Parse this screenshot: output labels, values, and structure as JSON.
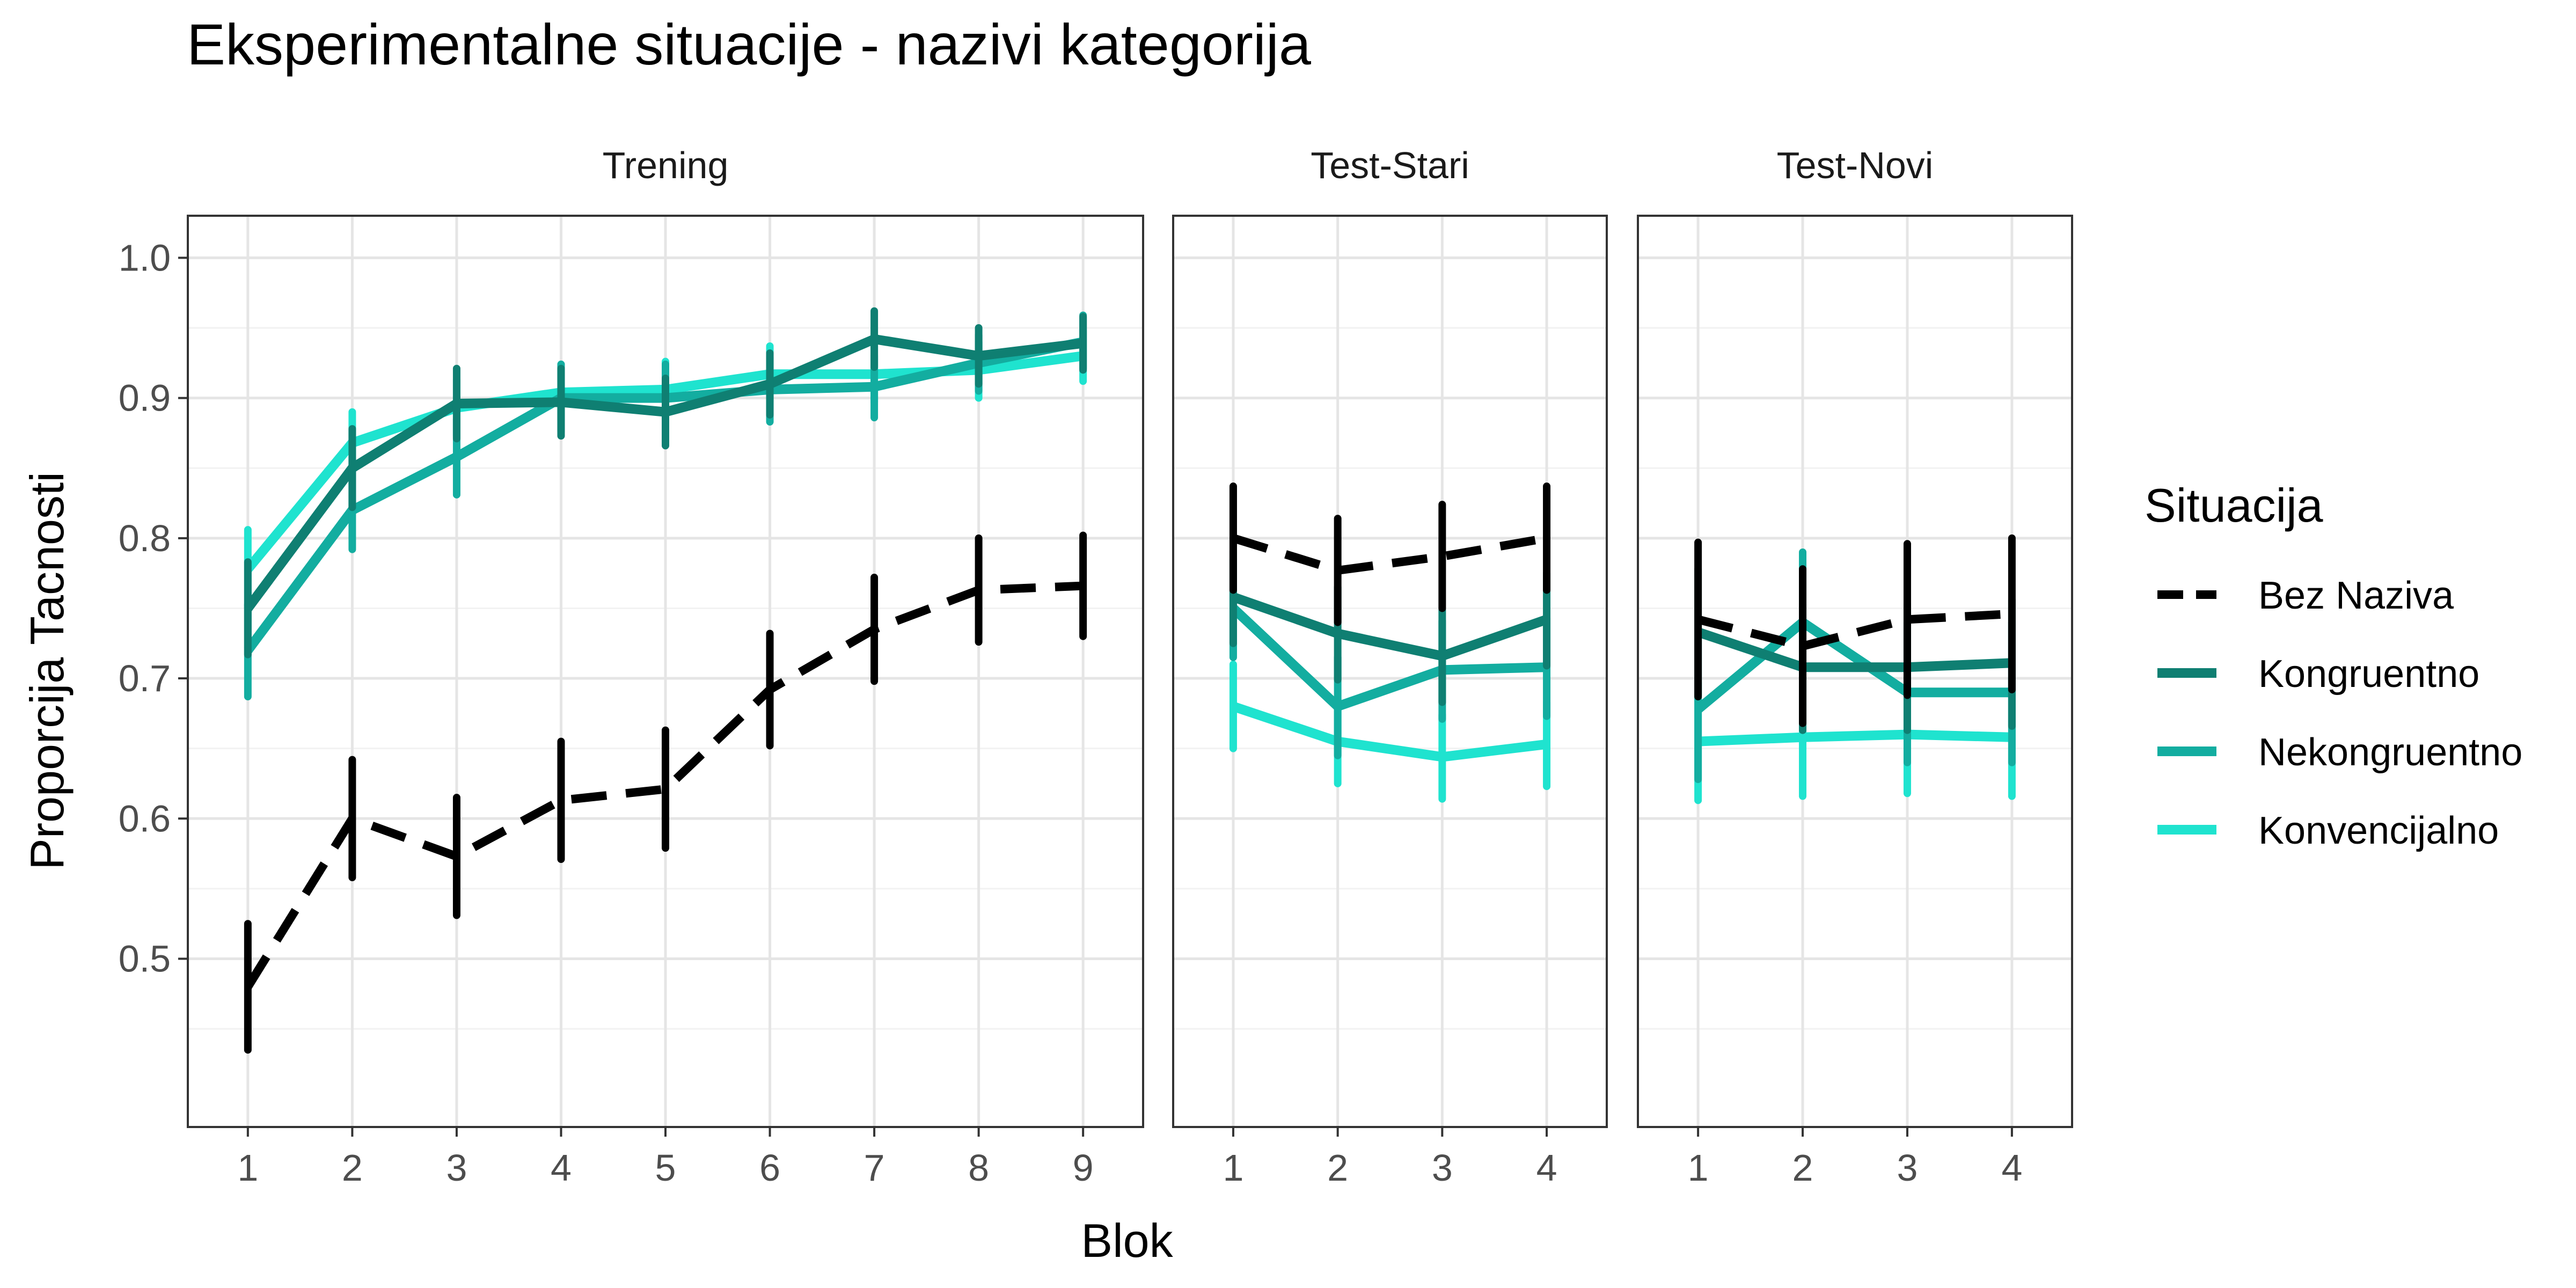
{
  "title": "Eksperimentalne situacije - nazivi kategorija",
  "xlabel": "Blok",
  "ylabel": "Proporcija Tacnosti",
  "legend": {
    "title": "Situacija",
    "position": "right",
    "items": [
      {
        "name": "Bez Naziva",
        "color": "#000000",
        "dashed": true
      },
      {
        "name": "Kongruentno",
        "color": "#0F7F72",
        "dashed": false
      },
      {
        "name": "Nekongruentno",
        "color": "#13ADA0",
        "dashed": false
      },
      {
        "name": "Konvencijalno",
        "color": "#1FE3CF",
        "dashed": false
      }
    ]
  },
  "chart_data": [
    {
      "type": "line",
      "panel": "Trening",
      "x": [
        1,
        2,
        3,
        4,
        5,
        6,
        7,
        8,
        9
      ],
      "xlabel": "Blok",
      "ylabel": "Proporcija Tacnosti",
      "ylim": [
        0.38,
        1.03
      ],
      "yticks": [
        0.5,
        0.6,
        0.7,
        0.8,
        0.9,
        1.0
      ],
      "grid": true,
      "series": [
        {
          "name": "Bez Naziva",
          "values": [
            0.48,
            0.6,
            0.573,
            0.613,
            0.621,
            0.692,
            0.735,
            0.763,
            0.766
          ],
          "errors": [
            0.045,
            0.042,
            0.042,
            0.042,
            0.042,
            0.04,
            0.037,
            0.037,
            0.036
          ]
        },
        {
          "name": "Kongruentno",
          "values": [
            0.75,
            0.85,
            0.896,
            0.897,
            0.89,
            0.91,
            0.942,
            0.93,
            0.939
          ],
          "errors": [
            0.033,
            0.028,
            0.025,
            0.024,
            0.024,
            0.022,
            0.02,
            0.02,
            0.019
          ]
        },
        {
          "name": "Nekongruentno",
          "values": [
            0.72,
            0.82,
            0.858,
            0.9,
            0.9,
            0.906,
            0.908,
            0.925,
            0.94
          ],
          "errors": [
            0.033,
            0.028,
            0.027,
            0.024,
            0.024,
            0.023,
            0.022,
            0.02,
            0.019
          ]
        },
        {
          "name": "Konvencijalno",
          "values": [
            0.778,
            0.868,
            0.893,
            0.904,
            0.906,
            0.917,
            0.917,
            0.92,
            0.93
          ],
          "errors": [
            0.028,
            0.022,
            0.02,
            0.02,
            0.02,
            0.02,
            0.02,
            0.02,
            0.018
          ]
        }
      ]
    },
    {
      "type": "line",
      "panel": "Test-Stari",
      "x": [
        1,
        2,
        3,
        4
      ],
      "ylim": [
        0.38,
        1.03
      ],
      "grid": true,
      "series": [
        {
          "name": "Bez Naziva",
          "values": [
            0.8,
            0.777,
            0.787,
            0.8
          ],
          "errors": [
            0.037,
            0.037,
            0.037,
            0.037
          ]
        },
        {
          "name": "Kongruentno",
          "values": [
            0.758,
            0.732,
            0.716,
            0.742
          ],
          "errors": [
            0.033,
            0.033,
            0.033,
            0.033
          ]
        },
        {
          "name": "Nekongruentno",
          "values": [
            0.75,
            0.68,
            0.706,
            0.708
          ],
          "errors": [
            0.035,
            0.035,
            0.035,
            0.035
          ]
        },
        {
          "name": "Konvencijalno",
          "values": [
            0.68,
            0.655,
            0.644,
            0.653
          ],
          "errors": [
            0.03,
            0.03,
            0.03,
            0.03
          ]
        }
      ]
    },
    {
      "type": "line",
      "panel": "Test-Novi",
      "x": [
        1,
        2,
        3,
        4
      ],
      "ylim": [
        0.38,
        1.03
      ],
      "grid": true,
      "series": [
        {
          "name": "Bez Naziva",
          "values": [
            0.742,
            0.723,
            0.742,
            0.746
          ],
          "errors": [
            0.055,
            0.055,
            0.054,
            0.054
          ]
        },
        {
          "name": "Kongruentno",
          "values": [
            0.733,
            0.708,
            0.708,
            0.711
          ],
          "errors": [
            0.045,
            0.045,
            0.045,
            0.045
          ]
        },
        {
          "name": "Nekongruentno",
          "values": [
            0.678,
            0.74,
            0.69,
            0.69
          ],
          "errors": [
            0.05,
            0.05,
            0.05,
            0.05
          ]
        },
        {
          "name": "Konvencijalno",
          "values": [
            0.655,
            0.658,
            0.66,
            0.658
          ],
          "errors": [
            0.042,
            0.042,
            0.042,
            0.042
          ]
        }
      ]
    }
  ]
}
